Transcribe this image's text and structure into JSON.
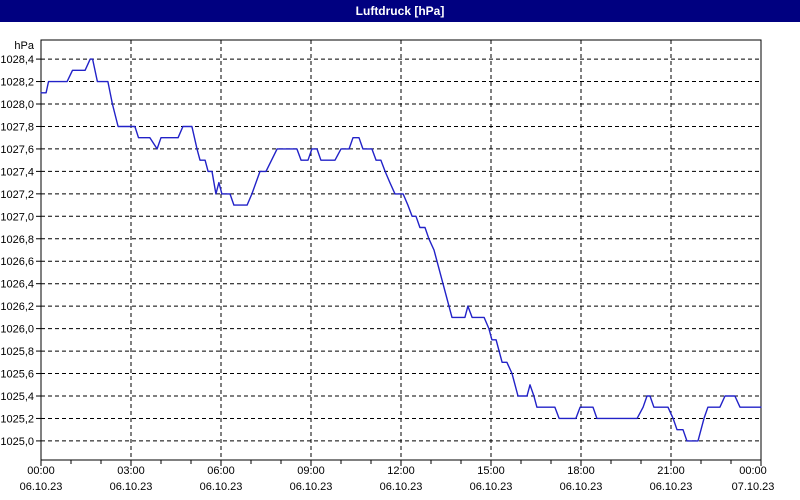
{
  "title_bar": {
    "title": "Luftdruck [hPa]"
  },
  "colors": {
    "frame": "#000080",
    "titlebar_bg": "#000080",
    "titlebar_text": "#ffffff",
    "plot_bg": "#ffffff",
    "grid": "#000000",
    "axis": "#000000",
    "line": "#2222c8",
    "label_text": "#000000"
  },
  "chart_data": {
    "type": "line",
    "title": "Luftdruck [hPa]",
    "ylabel": "hPa",
    "unit_label": "hPa",
    "grid": true,
    "legend": "none",
    "ylim": [
      1024.83,
      1028.57
    ],
    "xlim_hours": [
      0,
      24
    ],
    "yticks": {
      "values": [
        1028.4,
        1028.2,
        1028.0,
        1027.8,
        1027.6,
        1027.4,
        1027.2,
        1027.0,
        1026.8,
        1026.6,
        1026.4,
        1026.2,
        1026.0,
        1025.8,
        1025.6,
        1025.4,
        1025.2,
        1025.0
      ],
      "labels": [
        "1028,4",
        "1028,2",
        "1028,0",
        "1027,8",
        "1027,6",
        "1027,4",
        "1027,2",
        "1027,0",
        "1026,8",
        "1026,6",
        "1026,4",
        "1026,2",
        "1026,0",
        "1025,8",
        "1025,6",
        "1025,4",
        "1025,2",
        "1025,0"
      ]
    },
    "xticks": {
      "hours": [
        0,
        3,
        6,
        9,
        12,
        15,
        18,
        21,
        24
      ],
      "times": [
        "00:00",
        "03:00",
        "06:00",
        "09:00",
        "12:00",
        "15:00",
        "18:00",
        "21:00",
        "00:00"
      ],
      "dates": [
        "06.10.23",
        "06.10.23",
        "06.10.23",
        "06.10.23",
        "06.10.23",
        "06.10.23",
        "06.10.23",
        "06.10.23",
        "07.10.23"
      ]
    },
    "minor_xtick_every_hours": 1,
    "points": [
      [
        0.0,
        1028.1
      ],
      [
        0.17,
        1028.1
      ],
      [
        0.25,
        1028.2
      ],
      [
        0.87,
        1028.2
      ],
      [
        1.05,
        1028.3
      ],
      [
        1.47,
        1028.3
      ],
      [
        1.64,
        1028.4
      ],
      [
        1.72,
        1028.4
      ],
      [
        1.88,
        1028.2
      ],
      [
        2.23,
        1028.2
      ],
      [
        2.38,
        1028.0
      ],
      [
        2.57,
        1027.8
      ],
      [
        3.13,
        1027.8
      ],
      [
        3.25,
        1027.7
      ],
      [
        3.63,
        1027.7
      ],
      [
        3.87,
        1027.6
      ],
      [
        4.0,
        1027.7
      ],
      [
        4.57,
        1027.7
      ],
      [
        4.73,
        1027.8
      ],
      [
        5.03,
        1027.8
      ],
      [
        5.2,
        1027.6
      ],
      [
        5.3,
        1027.5
      ],
      [
        5.47,
        1027.5
      ],
      [
        5.57,
        1027.4
      ],
      [
        5.7,
        1027.4
      ],
      [
        5.83,
        1027.2
      ],
      [
        5.93,
        1027.3
      ],
      [
        6.03,
        1027.2
      ],
      [
        6.3,
        1027.2
      ],
      [
        6.43,
        1027.1
      ],
      [
        6.87,
        1027.1
      ],
      [
        7.03,
        1027.2
      ],
      [
        7.3,
        1027.4
      ],
      [
        7.5,
        1027.4
      ],
      [
        7.87,
        1027.6
      ],
      [
        8.53,
        1027.6
      ],
      [
        8.67,
        1027.5
      ],
      [
        8.9,
        1027.5
      ],
      [
        9.03,
        1027.6
      ],
      [
        9.2,
        1027.6
      ],
      [
        9.33,
        1027.5
      ],
      [
        9.8,
        1027.5
      ],
      [
        10.0,
        1027.6
      ],
      [
        10.27,
        1027.6
      ],
      [
        10.4,
        1027.7
      ],
      [
        10.6,
        1027.7
      ],
      [
        10.73,
        1027.6
      ],
      [
        11.03,
        1027.6
      ],
      [
        11.17,
        1027.5
      ],
      [
        11.33,
        1027.5
      ],
      [
        11.47,
        1027.4
      ],
      [
        11.63,
        1027.3
      ],
      [
        11.8,
        1027.2
      ],
      [
        12.07,
        1027.2
      ],
      [
        12.23,
        1027.1
      ],
      [
        12.37,
        1027.0
      ],
      [
        12.5,
        1027.0
      ],
      [
        12.63,
        1026.9
      ],
      [
        12.8,
        1026.9
      ],
      [
        12.93,
        1026.8
      ],
      [
        13.1,
        1026.7
      ],
      [
        13.7,
        1026.1
      ],
      [
        14.13,
        1026.1
      ],
      [
        14.23,
        1026.2
      ],
      [
        14.37,
        1026.1
      ],
      [
        14.77,
        1026.1
      ],
      [
        14.93,
        1026.0
      ],
      [
        15.03,
        1025.9
      ],
      [
        15.17,
        1025.9
      ],
      [
        15.37,
        1025.7
      ],
      [
        15.53,
        1025.7
      ],
      [
        15.7,
        1025.6
      ],
      [
        15.9,
        1025.4
      ],
      [
        16.2,
        1025.4
      ],
      [
        16.3,
        1025.5
      ],
      [
        16.43,
        1025.4
      ],
      [
        16.53,
        1025.3
      ],
      [
        17.13,
        1025.3
      ],
      [
        17.27,
        1025.2
      ],
      [
        17.83,
        1025.2
      ],
      [
        17.97,
        1025.3
      ],
      [
        18.4,
        1025.3
      ],
      [
        18.53,
        1025.2
      ],
      [
        19.87,
        1025.2
      ],
      [
        20.07,
        1025.3
      ],
      [
        20.2,
        1025.4
      ],
      [
        20.3,
        1025.4
      ],
      [
        20.43,
        1025.3
      ],
      [
        20.9,
        1025.3
      ],
      [
        21.07,
        1025.2
      ],
      [
        21.2,
        1025.1
      ],
      [
        21.4,
        1025.1
      ],
      [
        21.53,
        1025.0
      ],
      [
        21.9,
        1025.0
      ],
      [
        22.1,
        1025.2
      ],
      [
        22.23,
        1025.3
      ],
      [
        22.63,
        1025.3
      ],
      [
        22.8,
        1025.4
      ],
      [
        23.13,
        1025.4
      ],
      [
        23.3,
        1025.3
      ],
      [
        24.0,
        1025.3
      ]
    ]
  }
}
